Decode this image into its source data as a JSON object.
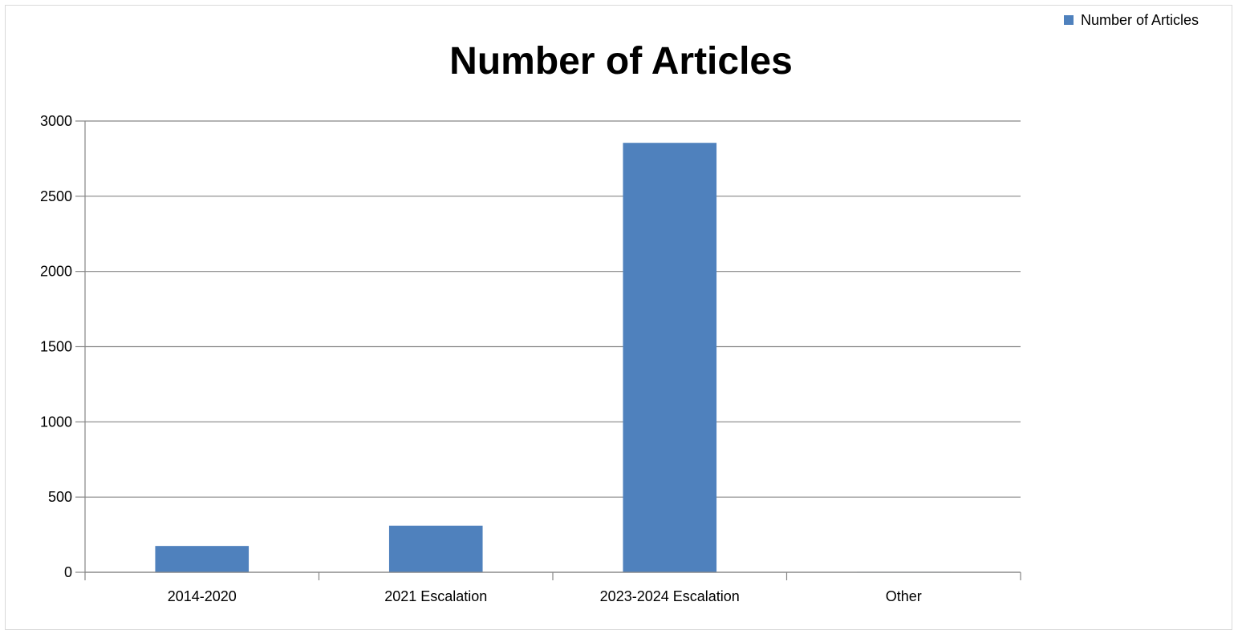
{
  "chart_data": {
    "type": "bar",
    "title": "Number of Articles",
    "categories": [
      "2014-2020",
      "2021 Escalation",
      "2023-2024 Escalation",
      "Other"
    ],
    "series": [
      {
        "name": "Number of Articles",
        "values": [
          175,
          310,
          2855,
          3
        ]
      }
    ],
    "xlabel": "",
    "ylabel": "",
    "ylim": [
      0,
      3000
    ],
    "yticks": [
      0,
      500,
      1000,
      1500,
      2000,
      2500,
      3000
    ],
    "grid": true,
    "legend_position": "top-right",
    "colors": {
      "bar": "#4f81bd",
      "grid": "#868686",
      "axis": "#868686"
    }
  }
}
